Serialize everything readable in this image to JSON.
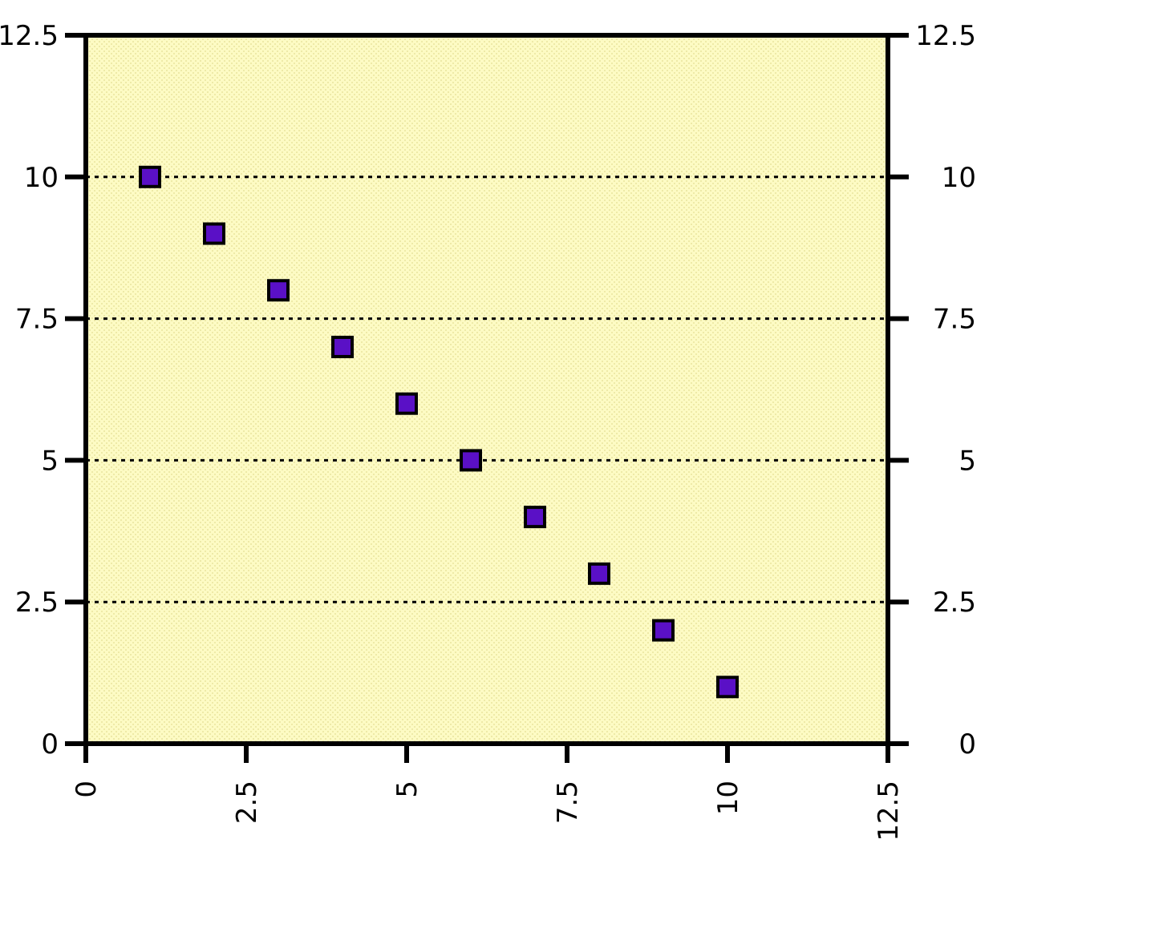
{
  "chart_data": {
    "type": "scatter",
    "title": "",
    "xlabel": "",
    "ylabel": "",
    "xlim": [
      0,
      12.5
    ],
    "ylim": [
      0,
      12.5
    ],
    "x_ticks": [
      "0",
      "2.5",
      "5",
      "7.5",
      "10",
      "12.5"
    ],
    "y_ticks": [
      "0",
      "2.5",
      "5",
      "7.5",
      "10",
      "12.5"
    ],
    "y_ticks_right": [
      "0",
      "2.5",
      "5",
      "7.5",
      "10",
      "12.5"
    ],
    "grid": "horizontal dotted",
    "legend": "none",
    "series": [
      {
        "points": [
          {
            "x": 1,
            "y": 10
          },
          {
            "x": 2,
            "y": 9
          },
          {
            "x": 3,
            "y": 8
          },
          {
            "x": 4,
            "y": 7
          },
          {
            "x": 5,
            "y": 6
          },
          {
            "x": 6,
            "y": 5
          },
          {
            "x": 7,
            "y": 4
          },
          {
            "x": 8,
            "y": 3
          },
          {
            "x": 9,
            "y": 2
          },
          {
            "x": 10,
            "y": 1
          }
        ]
      }
    ]
  },
  "colors": {
    "plot_background": "#fdfbc4",
    "marker_fill": "#5a10c6",
    "marker_stroke": "#000000",
    "axis": "#000000"
  }
}
